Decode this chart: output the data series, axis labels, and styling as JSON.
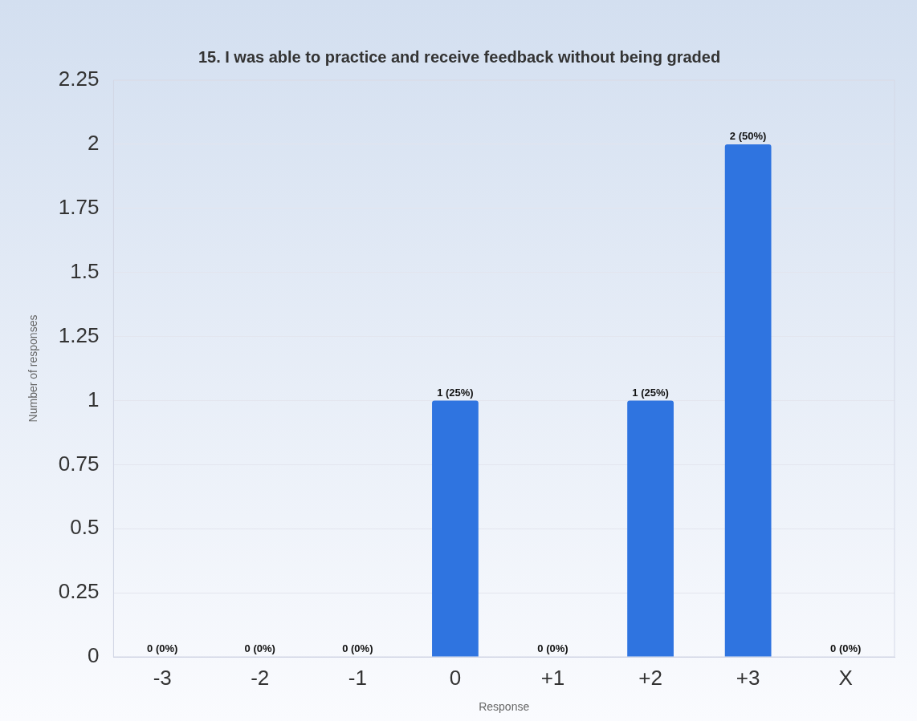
{
  "chart_data": {
    "type": "bar",
    "title": "15. I was able to practice and receive feedback without being graded",
    "xlabel": "Response",
    "ylabel": "Number of responses",
    "categories": [
      "-3",
      "-2",
      "-1",
      "0",
      "+1",
      "+2",
      "+3",
      "X"
    ],
    "values": [
      0,
      0,
      0,
      1,
      0,
      1,
      2,
      0
    ],
    "value_labels": [
      "0 (0%)",
      "0 (0%)",
      "0 (0%)",
      "1 (25%)",
      "0 (0%)",
      "1 (25%)",
      "2 (50%)",
      "0 (0%)"
    ],
    "color": "#2f74e0",
    "ylim": [
      0,
      2.25
    ],
    "yticks": [
      0,
      0.25,
      0.5,
      0.75,
      1,
      1.25,
      1.5,
      1.75,
      2,
      2.25
    ],
    "grid": "y",
    "legend": false
  }
}
